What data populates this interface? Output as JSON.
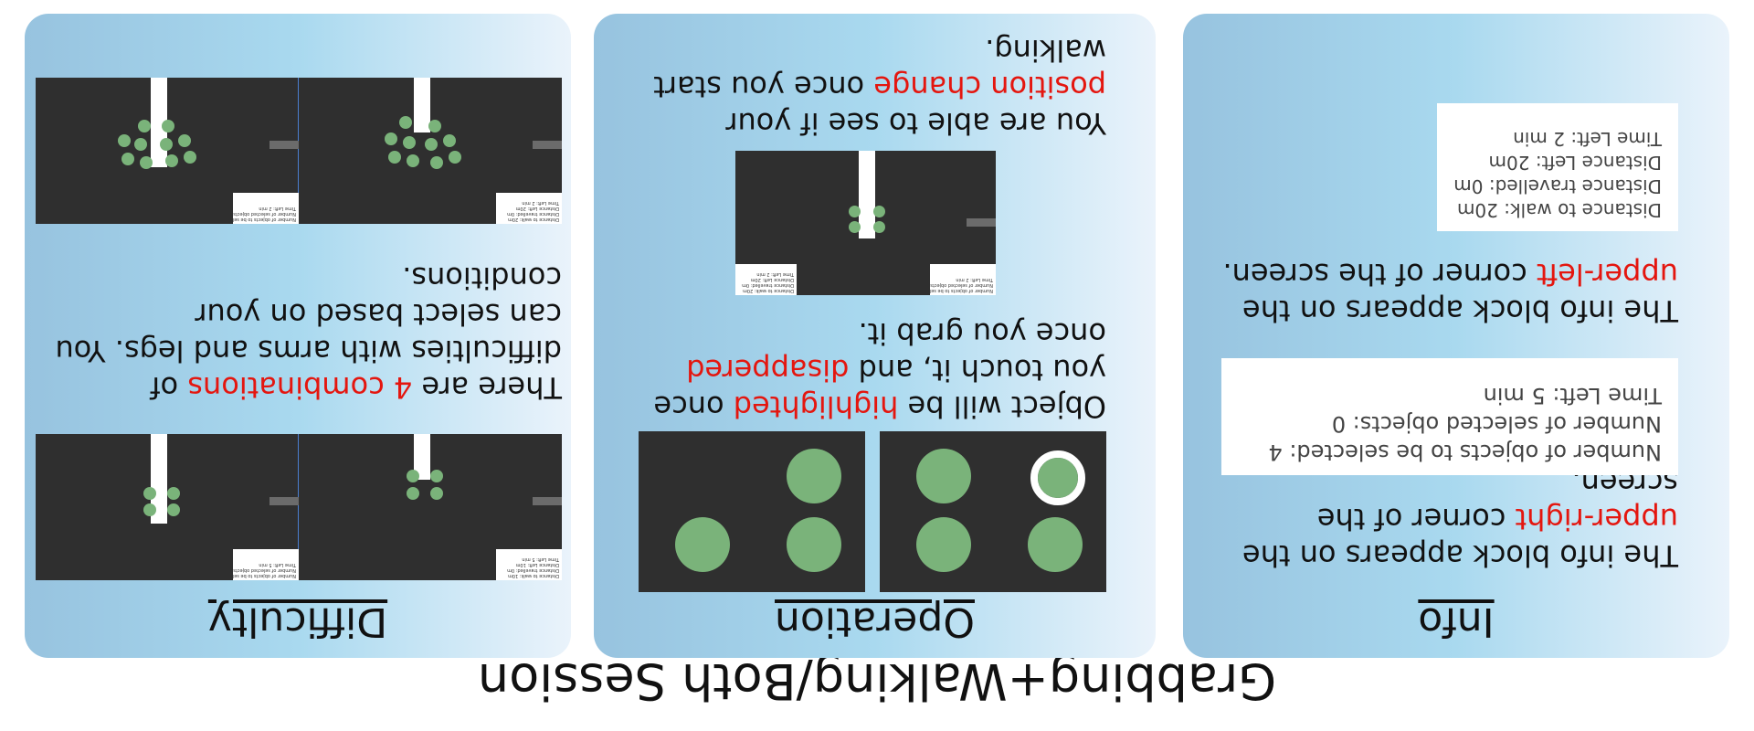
{
  "title": "Grabbing+Walking/Both Session",
  "difficulty": {
    "heading": "Difficulty",
    "text_parts": [
      "There are ",
      "4 combinations",
      " of difficulties with arms and legs. You can select based on your conditions."
    ],
    "mini_info": {
      "a": [
        "Distance to walk: 10m",
        "Distance travelled: 0m",
        "Distance Left: 10m",
        "Time Left: 5 min"
      ],
      "b": [
        "Number of objects to be selected: 4",
        "Number of selected objects: 0",
        "Time Left: 5 min"
      ],
      "c": [
        "Distance to walk: 20m",
        "Distance travelled: 0m",
        "Distance Left: 20m",
        "Time Left: 2 min"
      ],
      "d": [
        "Number of objects to be selected: 10",
        "Number of selected objects: 0",
        "Time Left: 2 min"
      ]
    }
  },
  "operation": {
    "heading": "Operation",
    "text1_parts": [
      "Object will be ",
      "highlighted",
      " once you touch it, and ",
      "disappered",
      " once you grab it."
    ],
    "text2_parts": [
      "You are able to see if your ",
      "position",
      " ",
      "change",
      " once you start walking."
    ],
    "mini_info": {
      "a": [
        "Number of objects to be selected: 4",
        "Number of selected objects: 0",
        "Time Left: 2 min"
      ],
      "b": [
        "Distance to walk: 20m",
        "Distance travelled: 0m",
        "Distance Left: 20m",
        "Time Left: 2 min"
      ]
    }
  },
  "info": {
    "heading": "Info",
    "text1_parts": [
      "The info block appears on the ",
      "upper-right",
      " corner of the screen."
    ],
    "box1": [
      "Number of objects to be selected: 4",
      "Number of selected objects: 0",
      "Time Left: 5 min"
    ],
    "text2_parts": [
      "The info block appears on the ",
      "upper-left",
      " corner of the screen."
    ],
    "box2": [
      "Distance to walk: 20m",
      "Distance travelled: 0m",
      "Distance Left: 20m",
      "Time Left: 2 min"
    ]
  },
  "colors": {
    "highlight": "#e4160f",
    "object": "#7ab37a",
    "scene": "#2f2f2f"
  }
}
